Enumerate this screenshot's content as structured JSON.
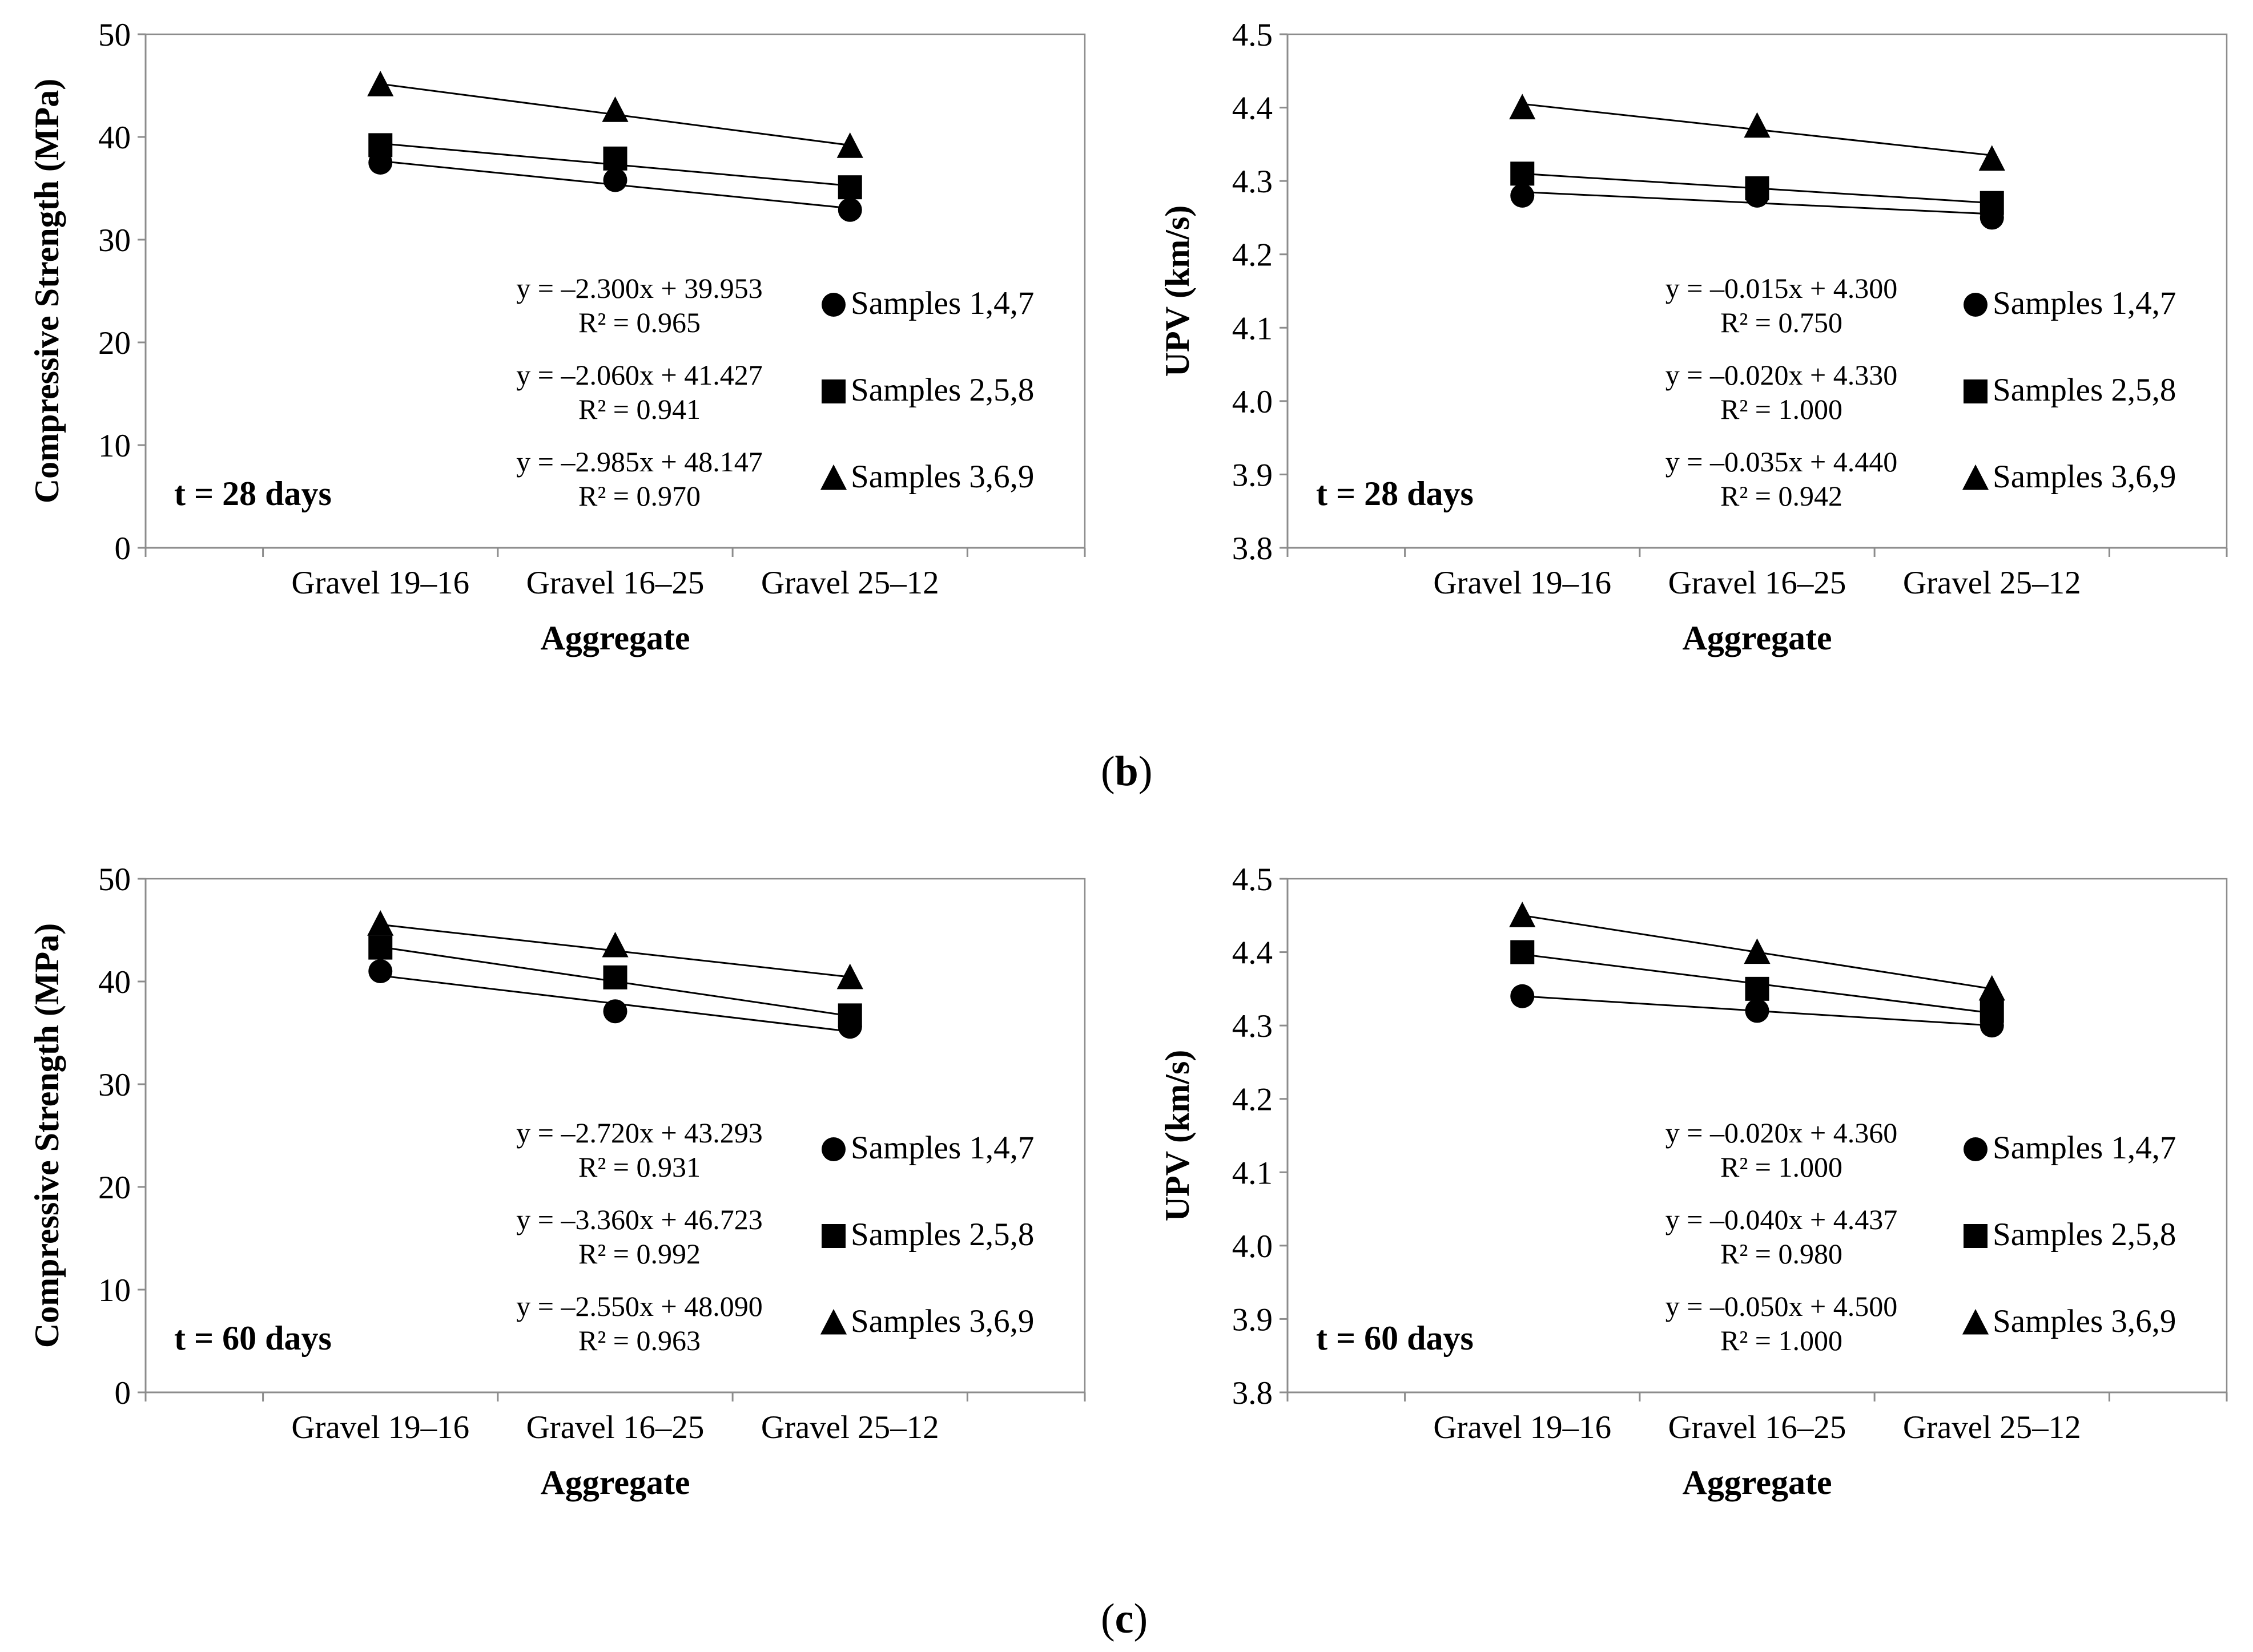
{
  "figure": {
    "captions": [
      {
        "open": "(",
        "letter": "b",
        "close": ")"
      },
      {
        "open": "(",
        "letter": "c",
        "close": ")"
      }
    ]
  },
  "chart_data": [
    {
      "type": "line",
      "title": "",
      "note": "t = 28 days",
      "xlabel": "Aggregate",
      "ylabel": "Compressive Strength (MPa)",
      "categories": [
        "Gravel 19–16",
        "Gravel 16–25",
        "Gravel 25–12"
      ],
      "ylim": [
        0,
        50
      ],
      "yticks": [
        0,
        10,
        20,
        30,
        40,
        50
      ],
      "tick_decimals": 0,
      "grid": false,
      "legend_position": "bottom-right",
      "series": [
        {
          "name": "Samples 1,4,7",
          "marker": "circle",
          "values": [
            37.5,
            35.8,
            32.9
          ],
          "trend": {
            "slope": -2.3,
            "intercept": 39.953
          },
          "equation": "y = –2.300x + 39.953",
          "r2": "R² = 0.965"
        },
        {
          "name": "Samples 2,5,8",
          "marker": "square",
          "values": [
            39.2,
            37.9,
            35.1
          ],
          "trend": {
            "slope": -2.06,
            "intercept": 41.427
          },
          "equation": "y = –2.060x + 41.427",
          "r2": "R² = 0.941"
        },
        {
          "name": "Samples 3,6,9",
          "marker": "triangle",
          "values": [
            45.1,
            42.6,
            39.1
          ],
          "trend": {
            "slope": -2.985,
            "intercept": 48.147
          },
          "equation": "y = –2.985x + 48.147",
          "r2": "R² = 0.970"
        }
      ]
    },
    {
      "type": "line",
      "title": "",
      "note": "t = 28 days",
      "xlabel": "Aggregate",
      "ylabel": "UPV (km/s)",
      "categories": [
        "Gravel 19–16",
        "Gravel 16–25",
        "Gravel 25–12"
      ],
      "ylim": [
        3.8,
        4.5
      ],
      "yticks": [
        3.8,
        3.9,
        4.0,
        4.1,
        4.2,
        4.3,
        4.4,
        4.5
      ],
      "tick_decimals": 1,
      "grid": false,
      "legend_position": "bottom-right",
      "series": [
        {
          "name": "Samples 1,4,7",
          "marker": "circle",
          "values": [
            4.28,
            4.28,
            4.25
          ],
          "trend": {
            "slope": -0.015,
            "intercept": 4.3
          },
          "equation": "y = –0.015x + 4.300",
          "r2": "R² = 0.750"
        },
        {
          "name": "Samples 2,5,8",
          "marker": "square",
          "values": [
            4.31,
            4.29,
            4.27
          ],
          "trend": {
            "slope": -0.02,
            "intercept": 4.33
          },
          "equation": "y = –0.020x + 4.330",
          "r2": "R² = 1.000"
        },
        {
          "name": "Samples 3,6,9",
          "marker": "triangle",
          "values": [
            4.4,
            4.375,
            4.33
          ],
          "trend": {
            "slope": -0.035,
            "intercept": 4.44
          },
          "equation": "y = –0.035x + 4.440",
          "r2": "R² = 0.942"
        }
      ]
    },
    {
      "type": "line",
      "title": "",
      "note": "t = 60 days",
      "xlabel": "Aggregate",
      "ylabel": "Compressive Strength (MPa)",
      "categories": [
        "Gravel 19–16",
        "Gravel 16–25",
        "Gravel 25–12"
      ],
      "ylim": [
        0,
        50
      ],
      "yticks": [
        0,
        10,
        20,
        30,
        40,
        50
      ],
      "tick_decimals": 0,
      "grid": false,
      "legend_position": "bottom-right",
      "series": [
        {
          "name": "Samples 1,4,7",
          "marker": "circle",
          "values": [
            41.0,
            37.1,
            35.6
          ],
          "trend": {
            "slope": -2.72,
            "intercept": 43.293
          },
          "equation": "y = –2.720x + 43.293",
          "r2": "R² = 0.931"
        },
        {
          "name": "Samples 2,5,8",
          "marker": "square",
          "values": [
            43.3,
            40.4,
            36.7
          ],
          "trend": {
            "slope": -3.36,
            "intercept": 46.723
          },
          "equation": "y = –3.360x + 46.723",
          "r2": "R² = 0.992"
        },
        {
          "name": "Samples 3,6,9",
          "marker": "triangle",
          "values": [
            45.6,
            43.5,
            40.4
          ],
          "trend": {
            "slope": -2.55,
            "intercept": 48.09
          },
          "equation": "y = –2.550x + 48.090",
          "r2": "R² = 0.963"
        }
      ]
    },
    {
      "type": "line",
      "title": "",
      "note": "t = 60 days",
      "xlabel": "Aggregate",
      "ylabel": "UPV (km/s)",
      "categories": [
        "Gravel 19–16",
        "Gravel 16–25",
        "Gravel 25–12"
      ],
      "ylim": [
        3.8,
        4.5
      ],
      "yticks": [
        3.8,
        3.9,
        4.0,
        4.1,
        4.2,
        4.3,
        4.4,
        4.5
      ],
      "tick_decimals": 1,
      "grid": false,
      "legend_position": "bottom-right",
      "series": [
        {
          "name": "Samples 1,4,7",
          "marker": "circle",
          "values": [
            4.34,
            4.32,
            4.3
          ],
          "trend": {
            "slope": -0.02,
            "intercept": 4.36
          },
          "equation": "y = –0.020x + 4.360",
          "r2": "R² = 1.000"
        },
        {
          "name": "Samples 2,5,8",
          "marker": "square",
          "values": [
            4.4,
            4.35,
            4.32
          ],
          "trend": {
            "slope": -0.04,
            "intercept": 4.437
          },
          "equation": "y = –0.040x + 4.437",
          "r2": "R² = 0.980"
        },
        {
          "name": "Samples 3,6,9",
          "marker": "triangle",
          "values": [
            4.45,
            4.4,
            4.35
          ],
          "trend": {
            "slope": -0.05,
            "intercept": 4.5
          },
          "equation": "y = –0.050x + 4.500",
          "r2": "R² = 1.000"
        }
      ]
    }
  ]
}
